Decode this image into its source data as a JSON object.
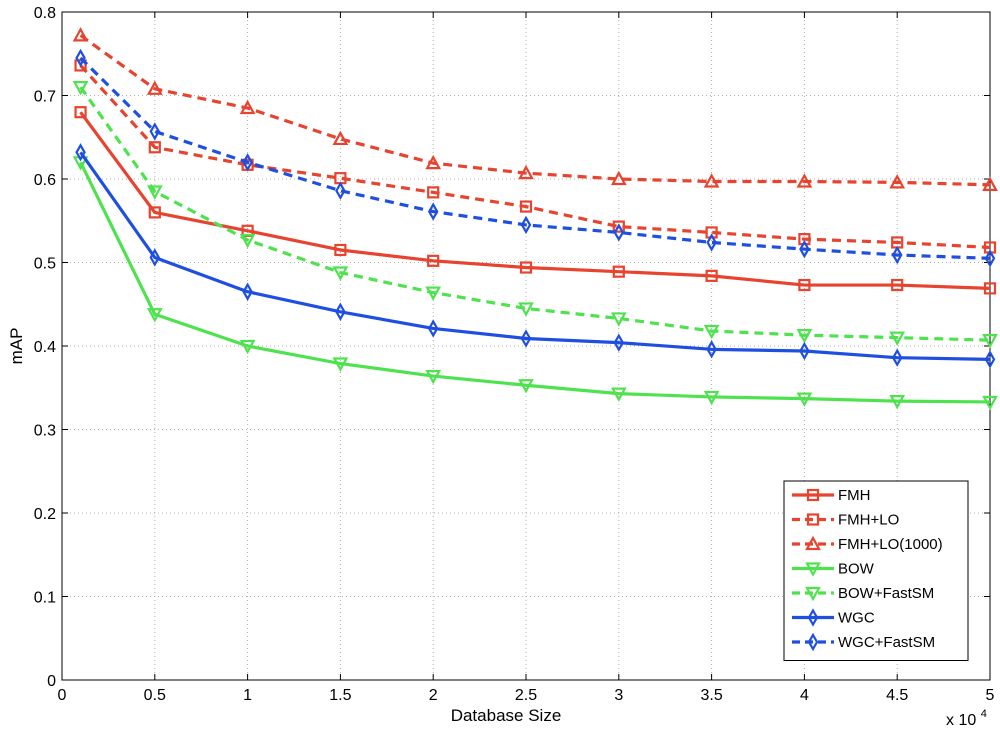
{
  "chart_data": {
    "type": "line",
    "title": "",
    "xlabel": "Database Size",
    "ylabel": "mAP",
    "x_multiplier_label": "x 10",
    "x_multiplier_exp": "4",
    "xlim": [
      0,
      5
    ],
    "ylim": [
      0,
      0.8
    ],
    "x_ticks": [
      0,
      0.5,
      1,
      1.5,
      2,
      2.5,
      3,
      3.5,
      4,
      4.5,
      5
    ],
    "x_tick_labels": [
      "0",
      "0.5",
      "1",
      "1.5",
      "2",
      "2.5",
      "3",
      "3.5",
      "4",
      "4.5",
      "5"
    ],
    "y_ticks": [
      0,
      0.1,
      0.2,
      0.3,
      0.4,
      0.5,
      0.6,
      0.7,
      0.8
    ],
    "y_tick_labels": [
      "0",
      "0.1",
      "0.2",
      "0.3",
      "0.4",
      "0.5",
      "0.6",
      "0.7",
      "0.8"
    ],
    "grid": true,
    "legend_position": "bottom-right",
    "x": [
      0.1,
      0.5,
      1,
      1.5,
      2,
      2.5,
      3,
      3.5,
      4,
      4.5,
      5
    ],
    "series": [
      {
        "name": "FMH",
        "color": "#e8432e",
        "dash": "solid",
        "marker": "square",
        "values": [
          0.68,
          0.56,
          0.538,
          0.515,
          0.502,
          0.494,
          0.489,
          0.484,
          0.473,
          0.473,
          0.469
        ]
      },
      {
        "name": "FMH+LO",
        "color": "#e8432e",
        "dash": "dashed",
        "marker": "square",
        "values": [
          0.736,
          0.638,
          0.617,
          0.601,
          0.584,
          0.567,
          0.543,
          0.536,
          0.528,
          0.524,
          0.518
        ]
      },
      {
        "name": "FMH+LO(1000)",
        "color": "#e8432e",
        "dash": "dashed",
        "marker": "triangle-up",
        "values": [
          0.772,
          0.708,
          0.685,
          0.648,
          0.619,
          0.607,
          0.6,
          0.597,
          0.597,
          0.596,
          0.593
        ]
      },
      {
        "name": "BOW",
        "color": "#4ee34e",
        "dash": "solid",
        "marker": "triangle-down",
        "values": [
          0.62,
          0.438,
          0.4,
          0.379,
          0.364,
          0.353,
          0.343,
          0.339,
          0.337,
          0.334,
          0.333
        ]
      },
      {
        "name": "BOW+FastSM",
        "color": "#4ee34e",
        "dash": "dashed",
        "marker": "triangle-down",
        "values": [
          0.71,
          0.585,
          0.527,
          0.488,
          0.464,
          0.445,
          0.433,
          0.418,
          0.413,
          0.41,
          0.407
        ]
      },
      {
        "name": "WGC",
        "color": "#1f4fe0",
        "dash": "solid",
        "marker": "diamond",
        "values": [
          0.632,
          0.506,
          0.465,
          0.441,
          0.421,
          0.409,
          0.404,
          0.396,
          0.394,
          0.386,
          0.384
        ]
      },
      {
        "name": "WGC+FastSM",
        "color": "#1f4fe0",
        "dash": "dashed",
        "marker": "diamond",
        "values": [
          0.745,
          0.657,
          0.62,
          0.586,
          0.561,
          0.545,
          0.536,
          0.524,
          0.516,
          0.509,
          0.505
        ]
      }
    ]
  }
}
